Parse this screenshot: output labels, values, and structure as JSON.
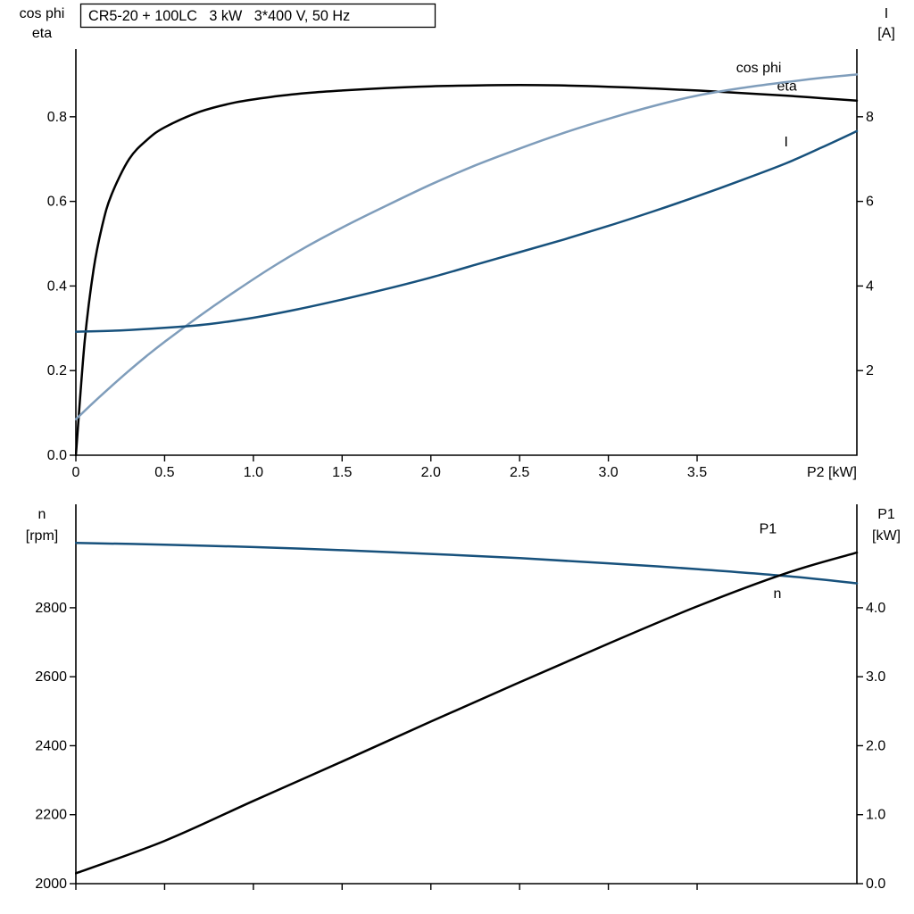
{
  "page": {
    "background": "#ffffff"
  },
  "title_box": {
    "text": "CR5-20 + 100LC   3 kW   3*400 V, 50 Hz"
  },
  "colors": {
    "axis": "#000000",
    "black_curve": "#000000",
    "light_blue_curve": "#7f9dbb",
    "dark_blue_curve": "#17517c",
    "background": "#ffffff"
  },
  "chart_data": [
    {
      "type": "line",
      "name": "electrical-characteristics-panel",
      "title": "CR5-20 + 100LC   3 kW   3*400 V, 50 Hz",
      "x_axis": {
        "label": "P2 [kW]",
        "range": [
          0,
          4.4
        ],
        "ticks": [
          0,
          0.5,
          1,
          1.5,
          2,
          2.5,
          3,
          3.5
        ],
        "tick_labels": [
          "0",
          "0.5",
          "1.0",
          "1.5",
          "2.0",
          "2.5",
          "3.0",
          "3.5"
        ],
        "show_tick_labels": true
      },
      "left_axis": {
        "title_lines": [
          "cos phi",
          "eta"
        ],
        "range": [
          0,
          0.96
        ],
        "ticks": [
          0,
          0.2,
          0.4,
          0.6,
          0.8
        ],
        "tick_labels": [
          "0.0",
          "0.2",
          "0.4",
          "0.6",
          "0.8"
        ]
      },
      "right_axis": {
        "title_lines": [
          "I",
          "[A]"
        ],
        "range": [
          0,
          9.6
        ],
        "ticks": [
          2,
          4,
          6,
          8
        ],
        "tick_labels": [
          "2",
          "4",
          "6",
          "8"
        ]
      },
      "legend_position": "curve-end-labels",
      "grid": false,
      "series": [
        {
          "id": "eta",
          "name": "eta",
          "axis": "left",
          "color": "#000000",
          "label": "eta",
          "label_at": [
            3.95,
            0.862
          ],
          "x": [
            0,
            0.05,
            0.1,
            0.15,
            0.2,
            0.3,
            0.4,
            0.5,
            0.7,
            0.9,
            1.1,
            1.3,
            1.5,
            1.75,
            2.0,
            2.25,
            2.5,
            2.75,
            3.0,
            3.25,
            3.5,
            3.75,
            4.0,
            4.2,
            4.4
          ],
          "y": [
            0,
            0.27,
            0.44,
            0.545,
            0.615,
            0.7,
            0.745,
            0.775,
            0.812,
            0.834,
            0.847,
            0.856,
            0.862,
            0.868,
            0.872,
            0.874,
            0.875,
            0.874,
            0.871,
            0.867,
            0.862,
            0.856,
            0.85,
            0.844,
            0.838
          ]
        },
        {
          "id": "cos-phi",
          "name": "cos phi",
          "axis": "left",
          "color": "#7f9dbb",
          "label": "cos phi",
          "label_at": [
            3.72,
            0.905
          ],
          "x": [
            0,
            0.1,
            0.2,
            0.3,
            0.4,
            0.5,
            0.7,
            0.9,
            1.1,
            1.3,
            1.5,
            1.75,
            2.0,
            2.25,
            2.5,
            2.75,
            3.0,
            3.25,
            3.5,
            3.75,
            4.0,
            4.2,
            4.4
          ],
          "y": [
            0.085,
            0.125,
            0.163,
            0.2,
            0.235,
            0.268,
            0.33,
            0.388,
            0.443,
            0.493,
            0.538,
            0.59,
            0.64,
            0.685,
            0.725,
            0.762,
            0.795,
            0.825,
            0.85,
            0.868,
            0.882,
            0.892,
            0.9
          ]
        },
        {
          "id": "current",
          "name": "I",
          "axis": "right",
          "color": "#17517c",
          "label": "I",
          "label_at": [
            3.99,
            7.3
          ],
          "x": [
            0,
            0.25,
            0.5,
            0.75,
            1.0,
            1.25,
            1.5,
            1.75,
            2.0,
            2.25,
            2.5,
            2.75,
            3.0,
            3.25,
            3.5,
            3.75,
            4.0,
            4.2,
            4.4
          ],
          "y": [
            2.92,
            2.95,
            3.01,
            3.1,
            3.25,
            3.45,
            3.68,
            3.93,
            4.2,
            4.5,
            4.8,
            5.1,
            5.42,
            5.76,
            6.12,
            6.5,
            6.9,
            7.27,
            7.66
          ]
        }
      ]
    },
    {
      "type": "line",
      "name": "speed-power-panel",
      "title": "",
      "x_axis": {
        "label": "",
        "range": [
          0,
          4.4
        ],
        "ticks": [
          0,
          0.5,
          1,
          1.5,
          2,
          2.5,
          3,
          3.5
        ],
        "tick_labels": [
          "",
          "",
          "",
          "",
          "",
          "",
          "",
          ""
        ],
        "show_tick_labels": false
      },
      "left_axis": {
        "title_lines": [
          "n",
          "[rpm]"
        ],
        "range": [
          2000,
          3100
        ],
        "ticks": [
          2000,
          2200,
          2400,
          2600,
          2800
        ],
        "tick_labels": [
          "2000",
          "2200",
          "2400",
          "2600",
          "2800"
        ]
      },
      "right_axis": {
        "title_lines": [
          "P1",
          "[kW]"
        ],
        "range": [
          0,
          5.5
        ],
        "ticks": [
          0,
          1,
          2,
          3,
          4
        ],
        "tick_labels": [
          "0.0",
          "1.0",
          "2.0",
          "3.0",
          "4.0"
        ]
      },
      "legend_position": "curve-end-labels",
      "grid": false,
      "series": [
        {
          "id": "speed",
          "name": "n",
          "axis": "left",
          "color": "#17517c",
          "label": "n",
          "label_at": [
            3.93,
            2828
          ],
          "x": [
            0,
            0.5,
            1.0,
            1.5,
            2.0,
            2.5,
            3.0,
            3.5,
            4.0,
            4.4
          ],
          "y": [
            2988,
            2983,
            2976,
            2967,
            2956,
            2944,
            2929,
            2912,
            2892,
            2871
          ]
        },
        {
          "id": "input-power",
          "name": "P1",
          "axis": "right",
          "color": "#000000",
          "label": "P1",
          "label_at": [
            3.85,
            5.08
          ],
          "x": [
            0,
            0.5,
            1.0,
            1.5,
            2.0,
            2.5,
            3.0,
            3.5,
            4.0,
            4.4
          ],
          "y": [
            0.15,
            0.62,
            1.2,
            1.77,
            2.35,
            2.92,
            3.48,
            4.02,
            4.5,
            4.8
          ]
        }
      ]
    }
  ]
}
